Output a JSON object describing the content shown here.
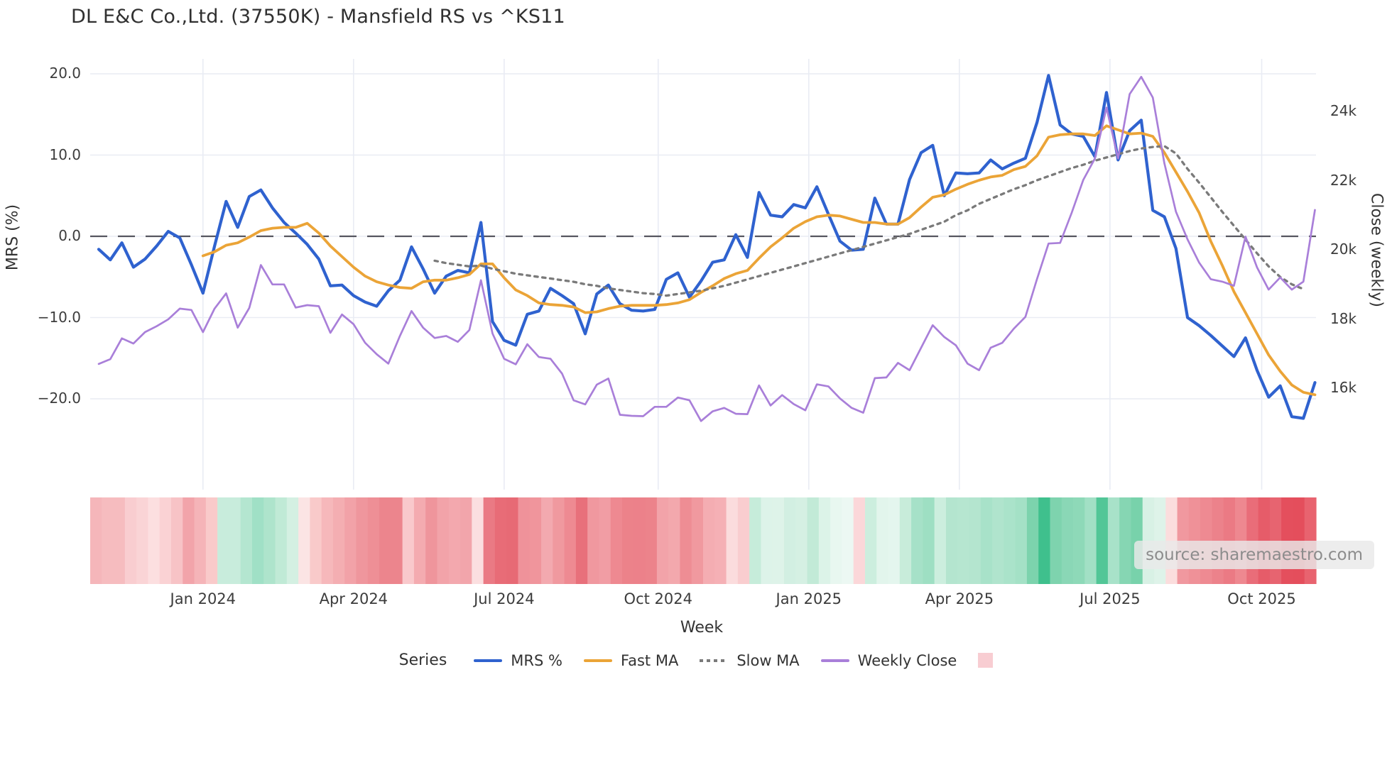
{
  "title": "DL E&C Co.,Ltd. (37550K) - Mansfield RS vs ^KS11",
  "source_note": "source: sharemaestro.com",
  "legend": {
    "title": "Series",
    "items": [
      "MRS %",
      "Fast MA",
      "Slow MA",
      "Weekly Close"
    ],
    "heat_swatch_color": "#f8cdd2"
  },
  "colors": {
    "mrs": "#2f62cf",
    "fast_ma": "#eba437",
    "slow_ma": "#7a7a7a",
    "weekly_close": "#a97fd9",
    "grid": "#e9ecf4",
    "zero_line": "#55555f"
  },
  "chart_data": {
    "type": "line",
    "title": "DL E&C Co.,Ltd. (37550K) - Mansfield RS vs ^KS11",
    "xlabel": "Week",
    "ylabel_left": "MRS (%)",
    "ylabel_right": "Close (weekly)",
    "grid": true,
    "legend_position": "bottom",
    "weeks_start": "2023-10-30",
    "weeks": 106,
    "y_axis_left": {
      "ticks": [
        {
          "label": "20.0",
          "value": 20
        },
        {
          "label": "10.0",
          "value": 10
        },
        {
          "label": "0.0",
          "value": 0
        },
        {
          "label": "−10.0",
          "value": -10
        },
        {
          "label": "−20.0",
          "value": -20
        }
      ],
      "range_note": "zero line dashed"
    },
    "y_axis_right": {
      "ticks": [
        {
          "label": "24k",
          "value": 24000
        },
        {
          "label": "22k",
          "value": 22000
        },
        {
          "label": "20k",
          "value": 20000
        },
        {
          "label": "18k",
          "value": 18000
        },
        {
          "label": "16k",
          "value": 16000
        }
      ]
    },
    "x_axis": {
      "ticks": [
        {
          "label": "Jan 2024",
          "week": 9.0
        },
        {
          "label": "Apr 2024",
          "week": 22.0
        },
        {
          "label": "Jul 2024",
          "week": 35.0
        },
        {
          "label": "Oct 2024",
          "week": 48.3
        },
        {
          "label": "Jan 2025",
          "week": 61.3
        },
        {
          "label": "Apr 2025",
          "week": 74.3
        },
        {
          "label": "Jul 2025",
          "week": 87.3
        },
        {
          "label": "Oct 2025",
          "week": 100.4
        }
      ]
    },
    "series": [
      {
        "name": "MRS %",
        "axis": "left",
        "style": "solid",
        "color": "#2f62cf",
        "width": 4.2,
        "values": [
          -1.6,
          -2.9,
          -0.8,
          -3.8,
          -2.8,
          -1.2,
          0.6,
          -0.2,
          -3.5,
          -7.0,
          -1.2,
          4.3,
          1.1,
          4.9,
          5.7,
          3.5,
          1.7,
          0.4,
          -1.0,
          -2.8,
          -6.1,
          -6.0,
          -7.3,
          -8.1,
          -8.6,
          -6.7,
          -5.4,
          -1.3,
          -4.0,
          -7.0,
          -4.9,
          -4.2,
          -4.5,
          1.7,
          -10.5,
          -12.8,
          -13.4,
          -9.6,
          -9.2,
          -6.4,
          -7.3,
          -8.3,
          -12.0,
          -7.1,
          -6.0,
          -8.3,
          -9.1,
          -9.2,
          -9.0,
          -5.3,
          -4.5,
          -7.5,
          -5.5,
          -3.2,
          -2.9,
          0.2,
          -2.6,
          5.4,
          2.6,
          2.4,
          3.9,
          3.5,
          6.1,
          2.7,
          -0.6,
          -1.7,
          -1.6,
          4.7,
          1.5,
          1.5,
          7.0,
          10.3,
          11.2,
          5.0,
          7.8,
          7.7,
          7.8,
          9.4,
          8.3,
          9.0,
          9.6,
          14.0,
          19.8,
          13.7,
          12.6,
          12.3,
          9.8,
          17.7,
          9.4,
          13.0,
          14.3,
          3.2,
          2.4,
          -1.5,
          -10.0,
          -11.0,
          -12.2,
          -13.5,
          -14.8,
          -12.5,
          -16.5,
          -19.8,
          -18.4,
          -22.2,
          -22.4,
          -18.0
        ]
      },
      {
        "name": "Fast MA",
        "axis": "left",
        "style": "solid",
        "color": "#eba437",
        "width": 3.8,
        "values": [
          null,
          null,
          null,
          null,
          null,
          null,
          null,
          null,
          null,
          -2.4,
          -1.9,
          -1.1,
          -0.8,
          -0.1,
          0.7,
          1.0,
          1.1,
          1.1,
          1.6,
          0.4,
          -1.2,
          -2.5,
          -3.8,
          -4.9,
          -5.6,
          -6.0,
          -6.3,
          -6.4,
          -5.6,
          -5.4,
          -5.4,
          -5.1,
          -4.7,
          -3.4,
          -3.4,
          -5.1,
          -6.6,
          -7.3,
          -8.2,
          -8.4,
          -8.5,
          -8.7,
          -9.4,
          -9.3,
          -8.9,
          -8.6,
          -8.5,
          -8.5,
          -8.5,
          -8.4,
          -8.2,
          -7.8,
          -6.9,
          -6.1,
          -5.2,
          -4.6,
          -4.2,
          -2.7,
          -1.3,
          -0.2,
          1.0,
          1.8,
          2.4,
          2.6,
          2.5,
          2.1,
          1.7,
          1.7,
          1.5,
          1.5,
          2.3,
          3.6,
          4.8,
          5.1,
          5.8,
          6.4,
          6.9,
          7.3,
          7.5,
          8.2,
          8.6,
          9.9,
          12.2,
          12.5,
          12.6,
          12.6,
          12.4,
          13.6,
          13.1,
          12.6,
          12.7,
          12.3,
          10.3,
          7.9,
          5.5,
          2.9,
          -0.6,
          -3.6,
          -6.8,
          -9.4,
          -12.0,
          -14.6,
          -16.6,
          -18.3,
          -19.2,
          -19.5
        ]
      },
      {
        "name": "Slow MA",
        "axis": "left",
        "style": "dotted",
        "color": "#7a7a7a",
        "width": 3.3,
        "values": [
          null,
          null,
          null,
          null,
          null,
          null,
          null,
          null,
          null,
          null,
          null,
          null,
          null,
          null,
          null,
          null,
          null,
          null,
          null,
          null,
          null,
          null,
          null,
          null,
          null,
          null,
          null,
          null,
          null,
          -3.0,
          -3.3,
          -3.5,
          -3.7,
          -3.6,
          -4.0,
          -4.3,
          -4.6,
          -4.8,
          -5.0,
          -5.2,
          -5.4,
          -5.6,
          -5.9,
          -6.1,
          -6.4,
          -6.6,
          -6.8,
          -7.0,
          -7.1,
          -7.3,
          -7.1,
          -6.9,
          -6.7,
          -6.4,
          -6.1,
          -5.7,
          -5.3,
          -4.9,
          -4.5,
          -4.1,
          -3.7,
          -3.3,
          -2.9,
          -2.5,
          -2.1,
          -1.7,
          -1.3,
          -0.9,
          -0.5,
          -0.1,
          0.3,
          0.8,
          1.3,
          1.8,
          2.6,
          3.2,
          4.0,
          4.6,
          5.2,
          5.8,
          6.3,
          6.9,
          7.4,
          7.9,
          8.4,
          8.8,
          9.3,
          9.7,
          10.1,
          10.5,
          10.8,
          11.0,
          11.1,
          10.2,
          8.3,
          6.6,
          4.8,
          3.0,
          1.3,
          -0.4,
          -2.1,
          -3.7,
          -5.0,
          -5.9,
          -6.5,
          null
        ]
      },
      {
        "name": "Weekly Close",
        "axis": "right",
        "style": "solid",
        "color": "#a97fd9",
        "width": 2.7,
        "values": [
          16700,
          16840,
          17440,
          17290,
          17620,
          17790,
          17990,
          18300,
          18260,
          17620,
          18300,
          18740,
          17750,
          18320,
          19560,
          19000,
          19000,
          18330,
          18400,
          18370,
          17600,
          18130,
          17850,
          17310,
          16980,
          16710,
          17510,
          18230,
          17750,
          17450,
          17510,
          17340,
          17680,
          19120,
          17580,
          16850,
          16690,
          17270,
          16900,
          16850,
          16420,
          15650,
          15530,
          16100,
          16280,
          15230,
          15200,
          15190,
          15460,
          15460,
          15730,
          15650,
          15050,
          15330,
          15430,
          15260,
          15250,
          16080,
          15500,
          15800,
          15540,
          15360,
          16110,
          16050,
          15700,
          15430,
          15290,
          16290,
          16310,
          16730,
          16520,
          17170,
          17820,
          17480,
          17240,
          16710,
          16520,
          17170,
          17310,
          17720,
          18060,
          19150,
          20180,
          20200,
          21070,
          22020,
          22640,
          24110,
          22640,
          24500,
          25000,
          24400,
          22500,
          21100,
          20300,
          19630,
          19150,
          19080,
          18960,
          20380,
          19490,
          18850,
          19200,
          18850,
          19080,
          21150
        ]
      }
    ],
    "heatmap": {
      "name": "weekly strength strip",
      "colors": [
        "#f5b6ba",
        "#f6bcbf",
        "#f6bcbf",
        "#f9cdd0",
        "#fad4d6",
        "#fcdfe0",
        "#fad2d4",
        "#f7c3c6",
        "#f2a4aa",
        "#f5b4b8",
        "#f9caca",
        "#c8ecdc",
        "#c8ecdc",
        "#b4e6d0",
        "#a0e0c6",
        "#aee4cc",
        "#c0ead6",
        "#d4f0e2",
        "#fbe4e4",
        "#f9caca",
        "#f6b8bb",
        "#f4aeb2",
        "#f2a2a8",
        "#ef969d",
        "#ee8f96",
        "#ec858d",
        "#ec858d",
        "#f9c9cc",
        "#f4abb0",
        "#ef959c",
        "#f2a3a9",
        "#f3a8ae",
        "#f2a5ab",
        "#fbdfe0",
        "#ea7a84",
        "#e86c77",
        "#e76a75",
        "#ef929a",
        "#f0959c",
        "#f3a9af",
        "#f0999f",
        "#ee8a92",
        "#e8707b",
        "#f0989f",
        "#f19da4",
        "#ee8991",
        "#ec828a",
        "#ec818a",
        "#ec838b",
        "#f2a3a9",
        "#f3a8ad",
        "#ee8d94",
        "#f0999f",
        "#f4adb2",
        "#f5b0b5",
        "#fbdcdd",
        "#f9cdcf",
        "#c6ecda",
        "#ddf3e9",
        "#def3e9",
        "#d2efe2",
        "#d5f0e3",
        "#c2ead7",
        "#dcf3e8",
        "#e8f7f0",
        "#ecf8f3",
        "#fbd7d9",
        "#cceede",
        "#e2f5ec",
        "#e4f6ee",
        "#c8ecda",
        "#a6e1c8",
        "#9edfc3",
        "#cceede",
        "#b4e5cf",
        "#b6e6d0",
        "#b4e5cf",
        "#a8e2c9",
        "#b0e4cd",
        "#aae3ca",
        "#a4e1c6",
        "#7cd3ad",
        "#3fc08d",
        "#7ed3ae",
        "#8ad7b6",
        "#8ed9b8",
        "#a2e0c5",
        "#52c697",
        "#a8e2c9",
        "#86d6b3",
        "#78d2ab",
        "#d8f1e5",
        "#def3e9",
        "#fbdddd",
        "#f0989f",
        "#ef9198",
        "#ee8a92",
        "#ec828b",
        "#eb7a84",
        "#ee8890",
        "#e96d79",
        "#e65c69",
        "#e76470",
        "#e44f5d",
        "#e44e5c",
        "#e8636f"
      ]
    }
  }
}
